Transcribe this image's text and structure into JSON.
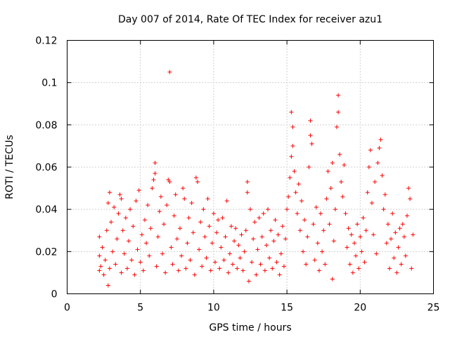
{
  "chart_data": {
    "type": "scatter",
    "title": "Day 007 of 2014, Rate Of TEC Index for receiver azu1",
    "xlabel": "GPS time / hours",
    "ylabel": "ROTI / TECUs",
    "xlim": [
      0,
      25
    ],
    "ylim": [
      0,
      0.12
    ],
    "xticks": [
      0,
      5,
      10,
      15,
      20,
      25
    ],
    "xtick_labels": [
      "0",
      "5",
      "10",
      "15",
      "20",
      "25"
    ],
    "yticks": [
      0,
      0.02,
      0.04,
      0.06,
      0.08,
      0.1,
      0.12
    ],
    "ytick_labels": [
      "0",
      "0.02",
      "0.04",
      "0.06",
      "0.08",
      "0.1",
      "0.12"
    ],
    "grid": true,
    "marker": "plus",
    "color": "#ff0000",
    "series": [
      {
        "name": "ROTI",
        "points": [
          [
            2.2,
            0.011
          ],
          [
            2.2,
            0.018
          ],
          [
            2.2,
            0.027
          ],
          [
            2.3,
            0.013
          ],
          [
            2.4,
            0.022
          ],
          [
            2.5,
            0.009
          ],
          [
            2.6,
            0.016
          ],
          [
            2.7,
            0.03
          ],
          [
            2.8,
            0.004
          ],
          [
            2.8,
            0.043
          ],
          [
            2.9,
            0.048
          ],
          [
            2.9,
            0.012
          ],
          [
            3.0,
            0.034
          ],
          [
            3.1,
            0.02
          ],
          [
            3.2,
            0.041
          ],
          [
            3.3,
            0.014
          ],
          [
            3.4,
            0.026
          ],
          [
            3.5,
            0.038
          ],
          [
            3.6,
            0.047
          ],
          [
            3.7,
            0.045
          ],
          [
            3.7,
            0.01
          ],
          [
            3.8,
            0.03
          ],
          [
            3.9,
            0.019
          ],
          [
            4.0,
            0.036
          ],
          [
            4.1,
            0.012
          ],
          [
            4.2,
            0.025
          ],
          [
            4.3,
            0.04
          ],
          [
            4.4,
            0.016
          ],
          [
            4.5,
            0.032
          ],
          [
            4.6,
            0.009
          ],
          [
            4.7,
            0.044
          ],
          [
            4.8,
            0.021
          ],
          [
            4.9,
            0.049
          ],
          [
            5.0,
            0.015
          ],
          [
            5.1,
            0.028
          ],
          [
            5.2,
            0.011
          ],
          [
            5.3,
            0.035
          ],
          [
            5.4,
            0.024
          ],
          [
            5.5,
            0.042
          ],
          [
            5.6,
            0.018
          ],
          [
            5.7,
            0.031
          ],
          [
            5.8,
            0.05
          ],
          [
            5.9,
            0.054
          ],
          [
            6.0,
            0.062
          ],
          [
            6.0,
            0.057
          ],
          [
            6.1,
            0.013
          ],
          [
            6.2,
            0.027
          ],
          [
            6.3,
            0.039
          ],
          [
            6.4,
            0.046
          ],
          [
            6.5,
            0.019
          ],
          [
            6.6,
            0.033
          ],
          [
            6.7,
            0.01
          ],
          [
            6.8,
            0.042
          ],
          [
            6.9,
            0.054
          ],
          [
            7.0,
            0.105
          ],
          [
            7.0,
            0.053
          ],
          [
            7.1,
            0.022
          ],
          [
            7.2,
            0.014
          ],
          [
            7.3,
            0.037
          ],
          [
            7.4,
            0.047
          ],
          [
            7.5,
            0.026
          ],
          [
            7.6,
            0.011
          ],
          [
            7.7,
            0.031
          ],
          [
            7.8,
            0.018
          ],
          [
            7.9,
            0.05
          ],
          [
            8.0,
            0.045
          ],
          [
            8.1,
            0.012
          ],
          [
            8.2,
            0.024
          ],
          [
            8.3,
            0.036
          ],
          [
            8.4,
            0.016
          ],
          [
            8.5,
            0.043
          ],
          [
            8.6,
            0.029
          ],
          [
            8.7,
            0.009
          ],
          [
            8.8,
            0.055
          ],
          [
            8.9,
            0.053
          ],
          [
            9.0,
            0.021
          ],
          [
            9.1,
            0.034
          ],
          [
            9.2,
            0.013
          ],
          [
            9.3,
            0.04
          ],
          [
            9.4,
            0.027
          ],
          [
            9.5,
            0.017
          ],
          [
            9.6,
            0.045
          ],
          [
            9.7,
            0.032
          ],
          [
            9.8,
            0.011
          ],
          [
            9.9,
            0.024
          ],
          [
            10.0,
            0.038
          ],
          [
            10.1,
            0.015
          ],
          [
            10.2,
            0.029
          ],
          [
            10.3,
            0.035
          ],
          [
            10.4,
            0.012
          ],
          [
            10.5,
            0.022
          ],
          [
            10.6,
            0.036
          ],
          [
            10.7,
            0.016
          ],
          [
            10.8,
            0.027
          ],
          [
            10.9,
            0.044
          ],
          [
            11.0,
            0.01
          ],
          [
            11.1,
            0.019
          ],
          [
            11.2,
            0.032
          ],
          [
            11.3,
            0.014
          ],
          [
            11.4,
            0.025
          ],
          [
            11.5,
            0.031
          ],
          [
            11.6,
            0.012
          ],
          [
            11.7,
            0.023
          ],
          [
            11.8,
            0.017
          ],
          [
            11.9,
            0.028
          ],
          [
            12.0,
            0.011
          ],
          [
            12.1,
            0.02
          ],
          [
            12.2,
            0.03
          ],
          [
            12.3,
            0.053
          ],
          [
            12.3,
            0.048
          ],
          [
            12.4,
            0.006
          ],
          [
            12.5,
            0.04
          ],
          [
            12.6,
            0.015
          ],
          [
            12.7,
            0.026
          ],
          [
            12.8,
            0.034
          ],
          [
            12.9,
            0.009
          ],
          [
            13.0,
            0.021
          ],
          [
            13.1,
            0.036
          ],
          [
            13.2,
            0.014
          ],
          [
            13.3,
            0.027
          ],
          [
            13.4,
            0.038
          ],
          [
            13.5,
            0.011
          ],
          [
            13.6,
            0.023
          ],
          [
            13.7,
            0.04
          ],
          [
            13.8,
            0.017
          ],
          [
            13.9,
            0.03
          ],
          [
            14.0,
            0.012
          ],
          [
            14.1,
            0.025
          ],
          [
            14.2,
            0.035
          ],
          [
            14.3,
            0.015
          ],
          [
            14.4,
            0.028
          ],
          [
            14.5,
            0.009
          ],
          [
            14.6,
            0.019
          ],
          [
            14.7,
            0.032
          ],
          [
            14.8,
            0.013
          ],
          [
            14.9,
            0.026
          ],
          [
            15.0,
            0.04
          ],
          [
            15.1,
            0.046
          ],
          [
            15.2,
            0.055
          ],
          [
            15.3,
            0.065
          ],
          [
            15.3,
            0.086
          ],
          [
            15.4,
            0.079
          ],
          [
            15.4,
            0.07
          ],
          [
            15.5,
            0.058
          ],
          [
            15.6,
            0.048
          ],
          [
            15.7,
            0.038
          ],
          [
            15.8,
            0.052
          ],
          [
            15.9,
            0.03
          ],
          [
            16.0,
            0.044
          ],
          [
            16.1,
            0.02
          ],
          [
            16.2,
            0.035
          ],
          [
            16.3,
            0.014
          ],
          [
            16.4,
            0.027
          ],
          [
            16.5,
            0.06
          ],
          [
            16.6,
            0.082
          ],
          [
            16.6,
            0.075
          ],
          [
            16.7,
            0.071
          ],
          [
            16.8,
            0.033
          ],
          [
            16.9,
            0.016
          ],
          [
            17.0,
            0.041
          ],
          [
            17.1,
            0.024
          ],
          [
            17.2,
            0.011
          ],
          [
            17.3,
            0.038
          ],
          [
            17.4,
            0.02
          ],
          [
            17.5,
            0.03
          ],
          [
            17.6,
            0.014
          ],
          [
            17.7,
            0.045
          ],
          [
            17.8,
            0.058
          ],
          [
            17.9,
            0.033
          ],
          [
            18.0,
            0.05
          ],
          [
            18.1,
            0.062
          ],
          [
            18.1,
            0.007
          ],
          [
            18.2,
            0.025
          ],
          [
            18.3,
            0.04
          ],
          [
            18.4,
            0.079
          ],
          [
            18.5,
            0.094
          ],
          [
            18.5,
            0.086
          ],
          [
            18.6,
            0.066
          ],
          [
            18.7,
            0.053
          ],
          [
            18.8,
            0.046
          ],
          [
            18.9,
            0.061
          ],
          [
            19.0,
            0.038
          ],
          [
            19.1,
            0.022
          ],
          [
            19.2,
            0.031
          ],
          [
            19.3,
            0.014
          ],
          [
            19.4,
            0.028
          ],
          [
            19.5,
            0.01
          ],
          [
            19.6,
            0.024
          ],
          [
            19.7,
            0.018
          ],
          [
            19.8,
            0.033
          ],
          [
            19.9,
            0.012
          ],
          [
            20.0,
            0.027
          ],
          [
            20.1,
            0.02
          ],
          [
            20.2,
            0.036
          ],
          [
            20.3,
            0.015
          ],
          [
            20.4,
            0.03
          ],
          [
            20.5,
            0.048
          ],
          [
            20.6,
            0.06
          ],
          [
            20.7,
            0.068
          ],
          [
            20.8,
            0.043
          ],
          [
            20.9,
            0.028
          ],
          [
            21.0,
            0.053
          ],
          [
            21.1,
            0.019
          ],
          [
            21.2,
            0.062
          ],
          [
            21.3,
            0.069
          ],
          [
            21.4,
            0.073
          ],
          [
            21.5,
            0.056
          ],
          [
            21.6,
            0.04
          ],
          [
            21.7,
            0.047
          ],
          [
            21.8,
            0.024
          ],
          [
            21.9,
            0.033
          ],
          [
            22.0,
            0.012
          ],
          [
            22.1,
            0.026
          ],
          [
            22.2,
            0.038
          ],
          [
            22.3,
            0.017
          ],
          [
            22.4,
            0.029
          ],
          [
            22.5,
            0.01
          ],
          [
            22.6,
            0.022
          ],
          [
            22.7,
            0.031
          ],
          [
            22.8,
            0.014
          ],
          [
            22.9,
            0.033
          ],
          [
            23.0,
            0.027
          ],
          [
            23.1,
            0.018
          ],
          [
            23.2,
            0.037
          ],
          [
            23.3,
            0.05
          ],
          [
            23.4,
            0.045
          ],
          [
            23.5,
            0.012
          ],
          [
            23.6,
            0.028
          ]
        ]
      }
    ]
  }
}
